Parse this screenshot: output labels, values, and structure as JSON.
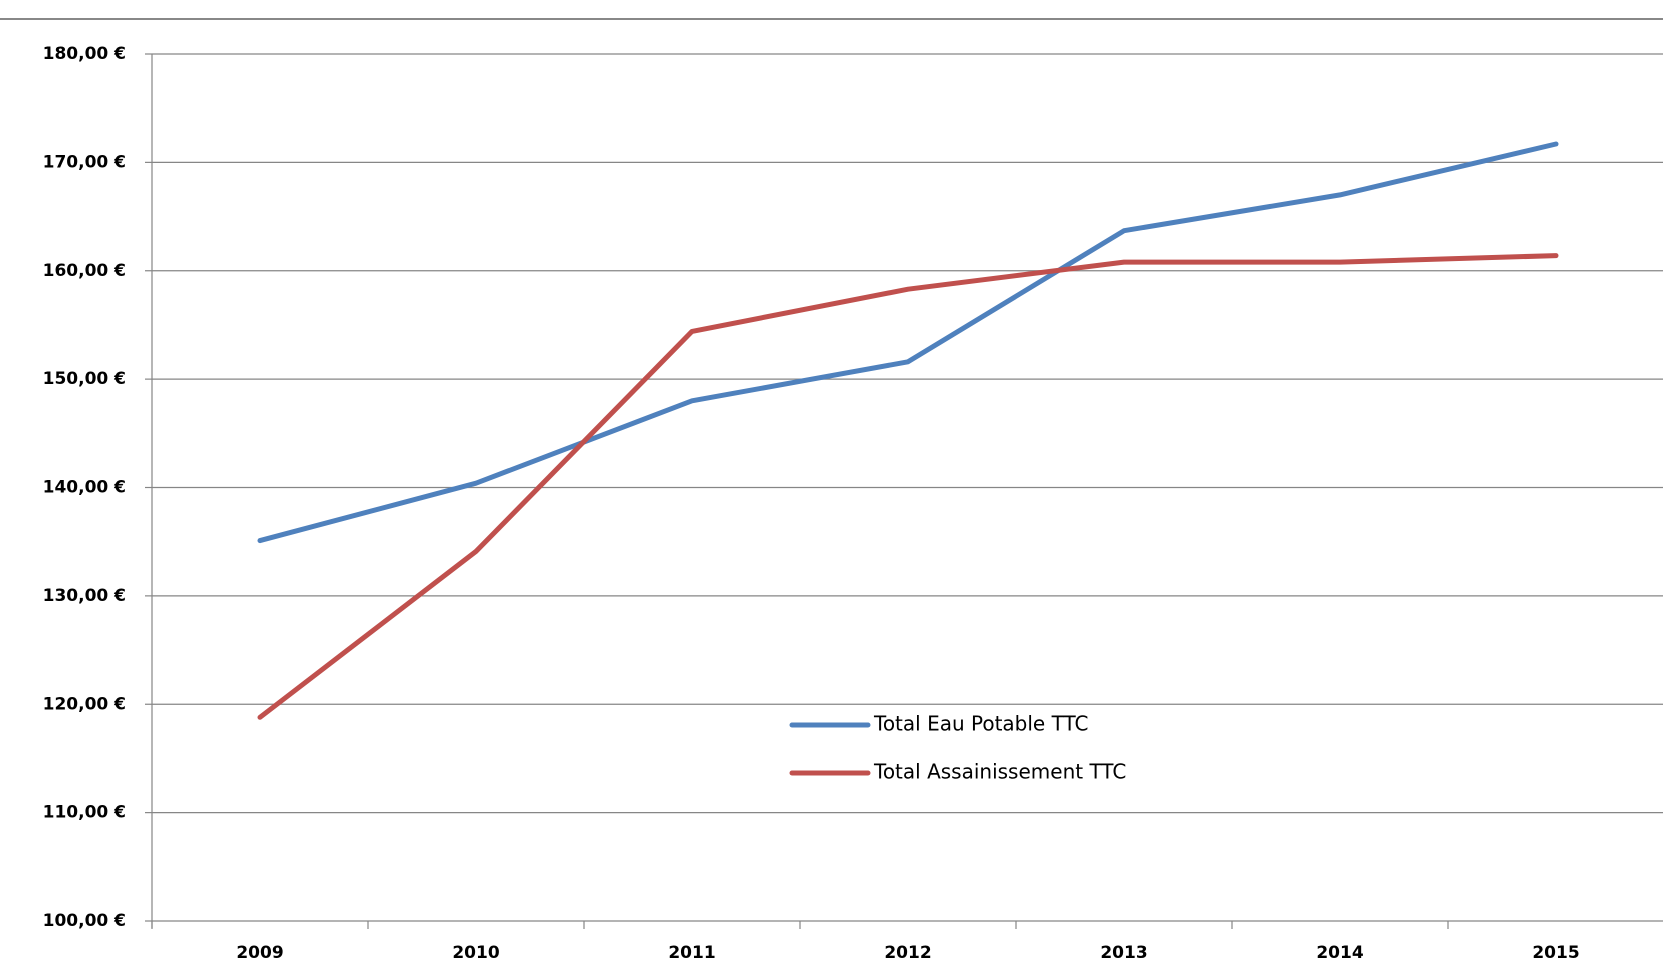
{
  "chart_data": {
    "type": "line",
    "categories": [
      "2009",
      "2010",
      "2011",
      "2012",
      "2013",
      "2014",
      "2015"
    ],
    "series": [
      {
        "name": "Total Eau Potable TTC",
        "color": "#4f81bd",
        "values": [
          135.1,
          140.4,
          148.0,
          151.6,
          163.7,
          167.0,
          171.7
        ]
      },
      {
        "name": "Total Assainissement TTC",
        "color": "#c0504d",
        "values": [
          118.8,
          134.1,
          154.4,
          158.3,
          160.8,
          160.8,
          161.4
        ]
      }
    ],
    "ylim": [
      100,
      180
    ],
    "yticks": [
      {
        "value": 100,
        "label": "100,00 €"
      },
      {
        "value": 110,
        "label": "110,00 €"
      },
      {
        "value": 120,
        "label": "120,00 €"
      },
      {
        "value": 130,
        "label": "130,00 €"
      },
      {
        "value": 140,
        "label": "140,00 €"
      },
      {
        "value": 150,
        "label": "150,00 €"
      },
      {
        "value": 160,
        "label": "160,00 €"
      },
      {
        "value": 170,
        "label": "170,00 €"
      },
      {
        "value": 180,
        "label": "180,00 €"
      }
    ],
    "grid": true
  }
}
